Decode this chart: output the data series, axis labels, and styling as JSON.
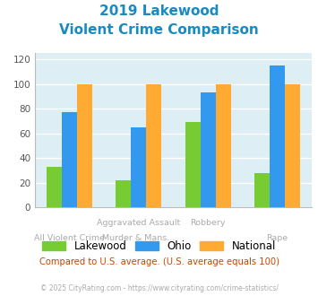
{
  "title_line1": "2019 Lakewood",
  "title_line2": "Violent Crime Comparison",
  "title_color": "#1a8abf",
  "series": {
    "Lakewood": [
      33,
      22,
      69,
      28
    ],
    "Ohio": [
      77,
      65,
      93,
      115
    ],
    "National": [
      100,
      100,
      100,
      100
    ]
  },
  "colors": {
    "Lakewood": "#77cc33",
    "Ohio": "#3399ee",
    "National": "#ffaa33"
  },
  "ylim": [
    0,
    125
  ],
  "yticks": [
    0,
    20,
    40,
    60,
    80,
    100,
    120
  ],
  "background_color": "#ddeef4",
  "grid_color": "#ffffff",
  "note": "Compared to U.S. average. (U.S. average equals 100)",
  "note_color": "#cc4400",
  "footer": "© 2025 CityRating.com - https://www.cityrating.com/crime-statistics/",
  "footer_color": "#aaaaaa",
  "xlabel_row1": [
    "",
    "Aggravated Assault",
    "Robbery",
    ""
  ],
  "xlabel_row2": [
    "All Violent Crime",
    "Murder & Mans...",
    "",
    "Rape"
  ],
  "bar_width": 0.22
}
